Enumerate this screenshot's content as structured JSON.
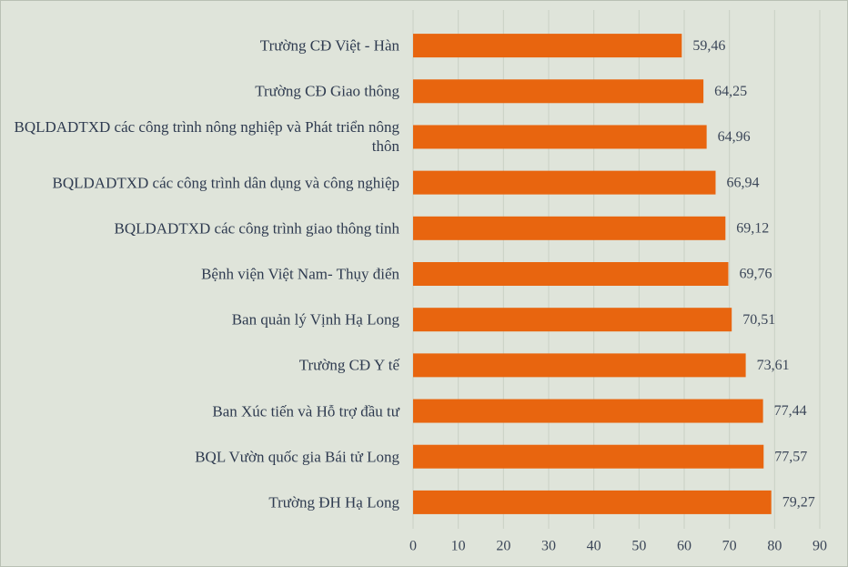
{
  "chart_data": {
    "type": "bar",
    "orientation": "horizontal",
    "categories": [
      "Trường CĐ Việt  - Hàn",
      "Trường CĐ Giao thông",
      "BQLDADTXD  các công trình nông nghiệp và Phát triển nông thôn",
      "BQLDADTXD  các công trình dân dụng và  công nghiệp",
      "BQLDADTXD  các công trình giao  thông tỉnh",
      "Bệnh viện Việt Nam- Thụy điển",
      "Ban quản lý Vịnh Hạ Long",
      "Trường CĐ Y tế",
      "Ban Xúc tiến  và Hỗ trợ đầu tư",
      "BQL  Vườn quốc gia Bái tử Long",
      "Trường ĐH Hạ Long"
    ],
    "values": [
      59.46,
      64.25,
      64.96,
      66.94,
      69.12,
      69.76,
      70.51,
      73.61,
      77.44,
      77.57,
      79.27
    ],
    "value_labels": [
      "59,46",
      "64,25",
      "64,96",
      "66,94",
      "69,12",
      "69,76",
      "70,51",
      "73,61",
      "77,44",
      "77,57",
      "79,27"
    ],
    "color": "#e8650f",
    "xlim": [
      0,
      90
    ],
    "xticks": [
      0,
      10,
      20,
      30,
      40,
      50,
      60,
      70,
      80,
      90
    ],
    "grid": true
  }
}
